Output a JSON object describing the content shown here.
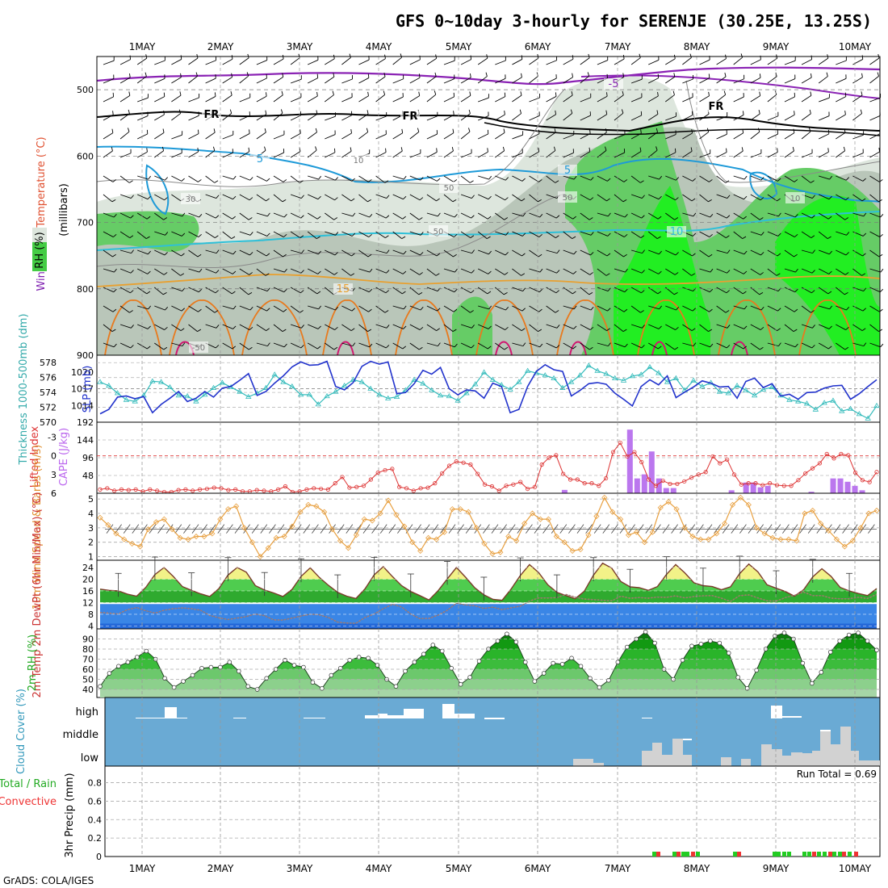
{
  "title": "GFS 0~10day 3-hourly for SERENJE (30.25E, 13.25S)",
  "credit": "GrADS: COLA/IGES",
  "colors": {
    "panel_border": "#000000",
    "cloud_bg": "#6aaad4",
    "precip_rain": "#22cc22",
    "precip_conv": "#ee3333",
    "cape_bar": "#bb77ee",
    "slp_line": "#2233cc",
    "thick_line": "#33bbbb",
    "wind_line": "#e8a040",
    "lifted_line": "#dd3333",
    "rh_green_dark": "#118811",
    "rh_green_light": "#aaddaa",
    "temp_yellow": "#eeee88",
    "temp_green": "#44bb44",
    "dewpt_blue": "#3388ee"
  },
  "chart_data": [
    {
      "type": "area",
      "id": "upper_air",
      "ylabel_parts": [
        "Wind (m/s)",
        "Temperature (°C)",
        "RH (%)",
        "(millibars)"
      ],
      "y_ticks": [
        "500",
        "600",
        "700",
        "800",
        "900"
      ],
      "ylim": [
        900,
        450
      ],
      "x_categories": [
        "1MAY",
        "2MAY",
        "3MAY",
        "4MAY",
        "5MAY",
        "6MAY",
        "7MAY",
        "8MAY",
        "9MAY",
        "10MAY"
      ],
      "contour_labels": [
        "-5",
        "FR",
        "FR",
        "FR",
        "5",
        "5",
        "10",
        "15",
        "10",
        "30",
        "50",
        "50",
        "50",
        "10",
        "-50"
      ]
    },
    {
      "type": "line",
      "id": "slp_thickness",
      "ylabel_left": "Thickness 1000-500mb (dm)",
      "ylabel_right": "SLP (mb)",
      "left_ticks": [
        "570",
        "572",
        "574",
        "576",
        "578"
      ],
      "right_ticks": [
        "1014",
        "1017",
        "1020"
      ],
      "series": [
        {
          "name": "SLP (mb)",
          "values": [
            1012.5,
            1013.3,
            1015.5,
            1015.7,
            1015.2,
            1015.6,
            1012.7,
            1014.2,
            1015.3,
            1016.5,
            1014.7,
            1015.3,
            1016.5,
            1015.5,
            1017.1,
            1017.4,
            1018.5,
            1019.7,
            1015.8,
            1016.5,
            1018.0,
            1019.3,
            1020.9,
            1021.8,
            1021.2,
            1021.3,
            1021.9,
            1017.4,
            1016.8,
            1018.1,
            1021.0,
            1021.9,
            1021.4,
            1021.8,
            1016.1,
            1016.3,
            1017.9,
            1020.3,
            1019.6,
            1020.8,
            1017.0,
            1015.9,
            1016.8,
            1016.6,
            1015.3,
            1018.0,
            1017.4,
            1012.7,
            1013.3,
            1017.4,
            1020.1,
            1021.3,
            1020.4,
            1020.1,
            1015.7,
            1016.7,
            1017.9,
            1018.1,
            1017.8,
            1016.2,
            1015.1,
            1013.9,
            1017.4,
            1018.6,
            1017.7,
            1019.3,
            1015.4,
            1016.4,
            1017.3,
            1018.4,
            1018.0,
            1017.3,
            1017.4,
            1015.3,
            1018.3,
            1018.9,
            1017.2,
            1017.9,
            1015.7,
            1016.0,
            1015.1,
            1016.3,
            1016.4,
            1017.1,
            1017.5,
            1017.6,
            1015.1,
            1016.1,
            1017.4,
            1018.6
          ]
        },
        {
          "name": "Thickness (dm)",
          "values": [
            575.4,
            574.9,
            573.9,
            573.0,
            572.8,
            573.6,
            575.5,
            575.4,
            574.7,
            573.6,
            573.5,
            572.8,
            573.7,
            574.6,
            575.3,
            574.7,
            574.1,
            573.4,
            573.9,
            574.6,
            576.4,
            575.4,
            574.8,
            573.7,
            573.7,
            572.4,
            573.5,
            574.1,
            574.9,
            575.7,
            575.4,
            574.5,
            573.7,
            573.2,
            573.4,
            574.3,
            575.7,
            575.2,
            574.3,
            573.6,
            573.5,
            572.9,
            573.9,
            575.1,
            576.7,
            575.7,
            575.0,
            574.4,
            575.4,
            576.9,
            576.6,
            576.3,
            575.9,
            574.6,
            575.4,
            576.3,
            577.6,
            576.9,
            576.5,
            575.9,
            575.6,
            576.2,
            576.4,
            577.4,
            576.6,
            575.4,
            575.9,
            574.3,
            575.6,
            574.8,
            575.3,
            574.1,
            573.9,
            574.9,
            574.3,
            573.6,
            574.4,
            574.7,
            573.6,
            573.0,
            572.8,
            572.5,
            571.7,
            572.6,
            572.9,
            571.5,
            571.8,
            571.1,
            570.5,
            572.2
          ]
        }
      ]
    },
    {
      "type": "bar",
      "id": "cape_lifted",
      "ylabel_left": "Lifted Index",
      "ylabel_right": "CAPE (J/kg)",
      "left_ticks": [
        "-3",
        "0",
        "3",
        "6"
      ],
      "right_ticks": [
        "48",
        "96",
        "144",
        "192"
      ],
      "series": [
        {
          "name": "CAPE (J/kg)",
          "values": [
            0,
            0,
            0,
            0,
            0,
            0,
            0,
            0,
            0,
            0,
            0,
            0,
            0,
            0,
            0,
            0,
            0,
            0,
            0,
            0,
            0,
            0,
            0,
            0,
            0,
            0,
            0,
            0,
            0,
            0,
            0,
            0,
            0,
            0,
            0,
            0,
            0,
            0,
            0,
            0,
            0,
            0,
            0,
            0,
            0,
            0,
            0,
            0,
            0,
            0,
            0,
            0,
            0,
            0,
            0,
            0,
            0,
            0,
            0,
            0,
            0,
            0,
            0,
            0,
            9,
            0,
            0,
            0,
            0,
            0,
            0,
            0,
            0,
            172,
            40,
            51,
            113,
            40,
            14,
            14,
            0,
            0,
            0,
            0,
            0,
            0,
            0,
            8,
            0,
            29,
            29,
            16,
            20,
            0,
            0,
            0,
            0,
            0,
            4,
            0,
            0,
            40,
            40,
            31,
            20,
            8,
            0,
            0
          ]
        },
        {
          "name": "Lifted Index",
          "values": [
            5.4,
            5.2,
            5.6,
            5.4,
            5.5,
            5.4,
            5.7,
            5.4,
            5.6,
            5.8,
            5.8,
            5.5,
            5.4,
            5.6,
            5.4,
            5.3,
            5.1,
            5.2,
            5.5,
            5.4,
            5.7,
            5.7,
            5.5,
            5.6,
            5.7,
            5.4,
            4.9,
            5.8,
            5.7,
            5.4,
            5.2,
            5.3,
            5.4,
            4.4,
            3.4,
            5.1,
            5.0,
            4.8,
            3.8,
            2.7,
            2.3,
            2.1,
            5.0,
            5.2,
            5.6,
            5.2,
            5.1,
            4.4,
            2.8,
            1.6,
            0.9,
            1.1,
            1.4,
            2.9,
            4.6,
            4.9,
            5.6,
            4.8,
            4.6,
            4.2,
            5.3,
            5.0,
            1.4,
            0.3,
            -0.1,
            2.9,
            3.8,
            3.8,
            4.4,
            4.4,
            4.8,
            3.6,
            -0.6,
            -2.1,
            0.1,
            -0.6,
            1.0,
            3.8,
            4.8,
            4.0,
            4.5,
            4.5,
            4.1,
            3.5,
            3.0,
            2.6,
            0.1,
            1.2,
            0.6,
            3.0,
            4.6,
            4.4,
            4.4,
            4.7,
            4.4,
            4.7,
            4.8,
            4.8,
            3.9,
            2.8,
            2.0,
            1.2,
            -0.3,
            0.4,
            -0.3,
            -0.1,
            2.7,
            3.9,
            4.2,
            2.6
          ]
        }
      ]
    },
    {
      "type": "line",
      "id": "wind10m",
      "ylabel": "10m Wind Speed & Barbs (m/s)",
      "left_ticks": [
        "1",
        "2",
        "3",
        "4",
        "5"
      ],
      "series": [
        {
          "name": "10m Wind Speed (m/s)",
          "values": [
            3.7,
            3.2,
            2.6,
            2.2,
            1.9,
            1.7,
            2.9,
            3.4,
            3.6,
            2.9,
            2.3,
            2.2,
            2.4,
            2.4,
            2.6,
            3.6,
            4.3,
            4.5,
            3.0,
            2.0,
            1.0,
            1.6,
            2.3,
            2.4,
            3.1,
            4.1,
            4.6,
            4.5,
            4.1,
            2.9,
            2.1,
            1.6,
            2.5,
            3.6,
            3.5,
            4.0,
            4.9,
            3.9,
            3.1,
            2.0,
            1.4,
            2.3,
            2.2,
            2.7,
            4.3,
            4.3,
            4.1,
            3.0,
            1.9,
            1.2,
            1.3,
            2.4,
            2.1,
            3.3,
            4.0,
            3.6,
            3.6,
            2.4,
            2.0,
            1.4,
            1.5,
            2.5,
            3.8,
            5.1,
            4.1,
            3.6,
            2.5,
            2.7,
            2.0,
            2.7,
            4.4,
            4.8,
            4.3,
            3.0,
            2.4,
            2.2,
            2.2,
            2.6,
            3.3,
            4.6,
            5.1,
            4.6,
            3.0,
            2.6,
            2.3,
            2.2,
            2.2,
            2.1,
            4.0,
            4.2,
            3.3,
            2.8,
            2.2,
            1.7,
            2.1,
            3.0,
            4.0,
            4.2
          ]
        }
      ]
    },
    {
      "type": "area",
      "id": "temp2m",
      "ylabel": "2m Temp 2m DewPt (6hr Min/Max) (°C)",
      "left_ticks": [
        "4",
        "8",
        "12",
        "16",
        "20",
        "24"
      ],
      "series": [
        {
          "name": "2m Temp (°C)",
          "values": [
            16.6,
            16.2,
            16.0,
            14.9,
            14.2,
            17.2,
            21.6,
            24.0,
            21.0,
            17.5,
            16.2,
            15.0,
            14.1,
            16.8,
            21.4,
            24.0,
            22.4,
            17.8,
            16.3,
            15.3,
            14.1,
            16.5,
            21.0,
            23.9,
            20.6,
            17.9,
            15.5,
            14.2,
            13.4,
            16.7,
            21.5,
            24.3,
            20.9,
            17.8,
            15.8,
            14.4,
            12.9,
            16.1,
            20.1,
            24.0,
            20.7,
            17.1,
            14.7,
            13.1,
            12.8,
            16.7,
            21.3,
            25.0,
            22.3,
            18.1,
            15.5,
            14.4,
            13.3,
            15.9,
            21.4,
            25.5,
            23.8,
            19.2,
            17.4,
            17.1,
            16.2,
            17.5,
            21.7,
            25.0,
            22.2,
            18.8,
            17.8,
            17.5,
            16.4,
            17.4,
            21.9,
            25.2,
            22.5,
            18.1,
            16.9,
            15.8,
            14.2,
            16.4,
            20.8,
            23.6,
            21.0,
            17.2,
            16.0,
            15.1,
            14.4,
            16.8
          ]
        },
        {
          "name": "2m DewPt (°C)",
          "values": [
            8.6,
            8.4,
            8.1,
            9.6,
            10.3,
            9.2,
            8.4,
            9.4,
            9.9,
            10.2,
            9.9,
            9.4,
            7.6,
            6.8,
            6.2,
            6.7,
            7.2,
            8.1,
            7.5,
            6.1,
            6.0,
            6.7,
            7.4,
            8.0,
            7.8,
            6.9,
            5.3,
            5.0,
            4.9,
            6.9,
            8.1,
            9.9,
            11.4,
            10.5,
            8.1,
            6.5,
            6.6,
            7.7,
            9.4,
            11.8,
            11.2,
            10.9,
            10.0,
            10.4,
            9.6,
            10.2,
            10.8,
            12.5,
            13.6,
            13.6,
            13.7,
            14.8,
            13.9,
            13.2,
            13.0,
            12.8,
            12.6,
            14.2,
            13.5,
            13.7,
            13.5,
            13.9,
            13.8,
            14.3,
            13.6,
            14.1,
            14.3,
            14.4,
            13.5,
            12.4,
            14.4,
            14.6,
            13.6,
            12.6,
            12.5,
            13.7,
            14.5,
            15.6,
            14.4,
            14.4,
            13.5,
            13.3,
            13.3,
            13.8,
            13.4,
            14.8
          ]
        }
      ]
    },
    {
      "type": "area",
      "id": "rh2m",
      "ylabel": "2m RH (%)",
      "left_ticks": [
        "40",
        "50",
        "60",
        "70",
        "80",
        "90"
      ],
      "series": [
        {
          "name": "2m RH (%)",
          "values": [
            43,
            56,
            63,
            67,
            72,
            78,
            70,
            51,
            42,
            48,
            54,
            61,
            62,
            62,
            67,
            58,
            43,
            40,
            51,
            60,
            69,
            64,
            62,
            47,
            41,
            54,
            61,
            69,
            72,
            71,
            64,
            50,
            43,
            58,
            67,
            75,
            84,
            78,
            61,
            45,
            52,
            68,
            80,
            88,
            95,
            87,
            67,
            48,
            56,
            66,
            65,
            71,
            63,
            51,
            42,
            49,
            67,
            82,
            90,
            97,
            86,
            60,
            50,
            69,
            83,
            85,
            88,
            86,
            76,
            52,
            41,
            59,
            80,
            93,
            96,
            90,
            66,
            46,
            57,
            77,
            88,
            94,
            96,
            88,
            79
          ]
        }
      ]
    },
    {
      "type": "bar",
      "id": "cloud",
      "ylabel": "Cloud Cover (%)",
      "levels": [
        "high",
        "middle",
        "low"
      ]
    },
    {
      "type": "bar",
      "id": "precip",
      "ylabel": "3hr Precip (mm)",
      "legend_total_rain": "Total / Rain",
      "legend_convective": "Convective",
      "run_total_label": "Run Total = 0.69",
      "y_ticks": [
        "0",
        "0.2",
        "0.4",
        "0.6",
        "0.8"
      ],
      "ylim": [
        0,
        0.98
      ],
      "x_categories": [
        "1MAY",
        "2MAY",
        "3MAY",
        "4MAY",
        "5MAY",
        "6MAY",
        "7MAY",
        "8MAY",
        "9MAY",
        "10MAY"
      ]
    }
  ]
}
